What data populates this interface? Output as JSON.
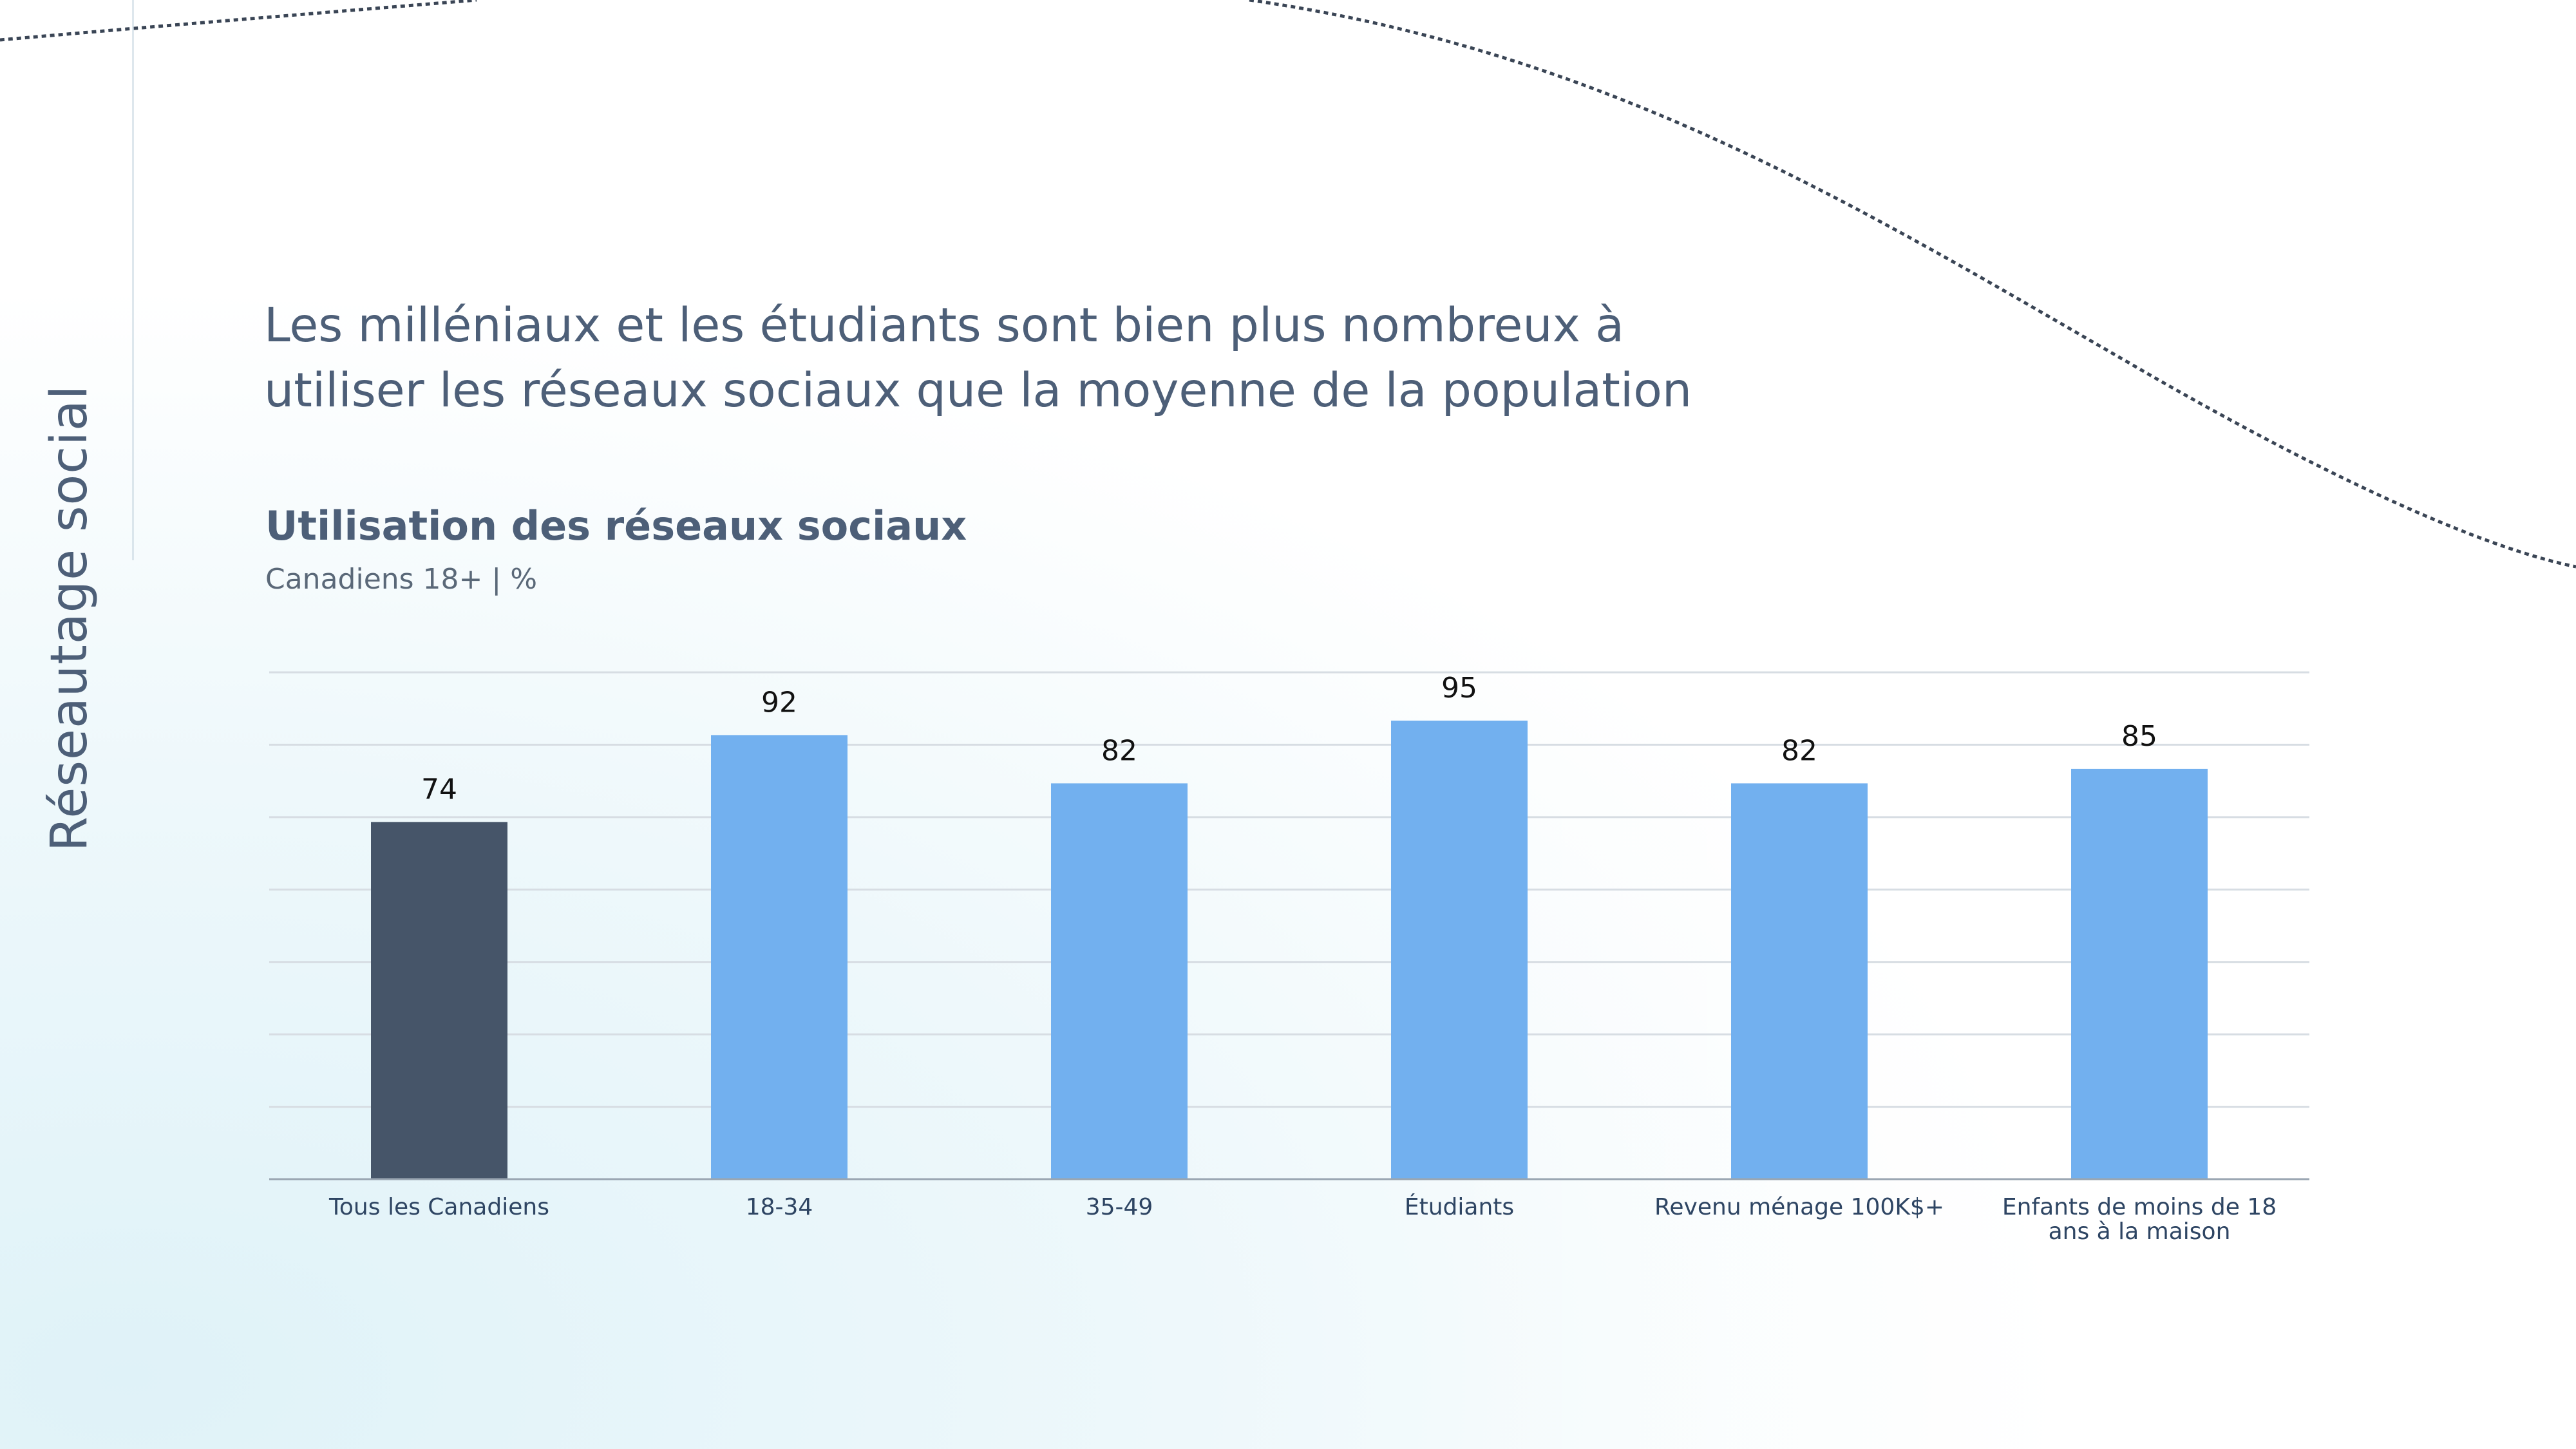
{
  "section_label": "Réseautage social",
  "headline": "Les milléniaux et les étudiants sont bien plus nombreux à utiliser les réseaux sociaux que la moyenne de la population",
  "chart_data": {
    "type": "bar",
    "title": "Utilisation des réseaux sociaux",
    "subtitle": "Canadiens 18+ | %",
    "categories": [
      "Tous les Canadiens",
      "18-34",
      "35-49",
      "Étudiants",
      "Revenu ménage 100K$+",
      "Enfants de moins de 18 ans à la maison"
    ],
    "values": [
      74,
      92,
      82,
      95,
      82,
      85
    ],
    "bar_colors": [
      "#465569",
      "#72b0ef",
      "#72b0ef",
      "#72b0ef",
      "#72b0ef",
      "#72b0ef"
    ],
    "ylim": [
      0,
      105
    ],
    "grid": true,
    "xlabel": "",
    "ylabel": ""
  },
  "colors": {
    "highlight_bar": "#465569",
    "bar": "#72b0ef",
    "text": "#4d5f78"
  }
}
